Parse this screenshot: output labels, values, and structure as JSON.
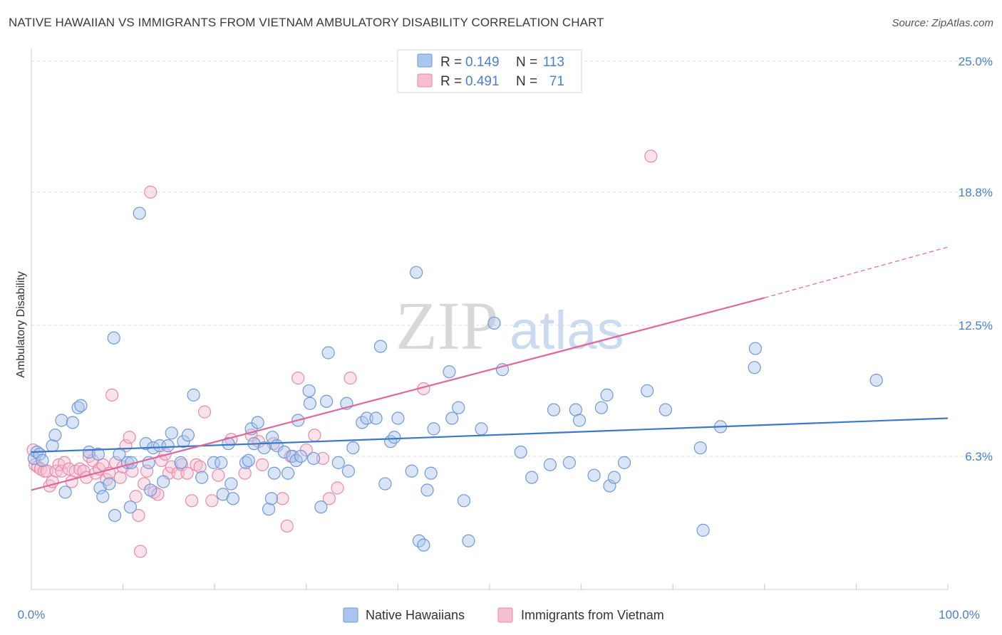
{
  "title": "NATIVE HAWAIIAN VS IMMIGRANTS FROM VIETNAM AMBULATORY DISABILITY CORRELATION CHART",
  "source": "Source: ZipAtlas.com",
  "watermark": {
    "zip": "ZIP",
    "atlas": "atlas"
  },
  "colors": {
    "blue": "#4a7fcf",
    "blue_fill": "#aac6ee",
    "blue_line": "#3b77cc",
    "pink_fill": "#f5bfd0",
    "pink_stroke": "#e98aaa",
    "pink_line": "#e0679a"
  },
  "legend": {
    "r_label": "R =",
    "n_label": "N =",
    "blue": {
      "r": "0.149",
      "n": "113"
    },
    "pink": {
      "r": "0.491",
      "n": "71"
    }
  },
  "chart_data": {
    "type": "scatter",
    "title": "NATIVE HAWAIIAN VS IMMIGRANTS FROM VIETNAM AMBULATORY DISABILITY CORRELATION CHART",
    "xlabel": "",
    "ylabel": "Ambulatory Disability",
    "xlim": [
      0,
      100
    ],
    "ylim": [
      0,
      25.6
    ],
    "x_tick_labels": [
      "0.0%",
      "100.0%"
    ],
    "y_ticks": [
      6.3,
      12.5,
      18.8,
      25.0
    ],
    "y_tick_labels": [
      "6.3%",
      "12.5%",
      "18.8%",
      "25.0%"
    ],
    "grid": true,
    "legend_position": "top-center",
    "series": [
      {
        "name": "Native Hawaiians",
        "r": 0.149,
        "n": 113,
        "trend": {
          "x0": 0,
          "y0": 6.5,
          "x1": 100,
          "y1": 8.1
        },
        "points": [
          [
            0.3,
            6.2
          ],
          [
            0.6,
            6.5
          ],
          [
            0.9,
            6.4
          ],
          [
            1.2,
            6.1
          ],
          [
            2.3,
            6.8
          ],
          [
            2.6,
            7.3
          ],
          [
            3.3,
            8.0
          ],
          [
            3.7,
            4.6
          ],
          [
            4.5,
            7.9
          ],
          [
            5.1,
            8.6
          ],
          [
            5.4,
            8.7
          ],
          [
            6.3,
            6.5
          ],
          [
            7.3,
            6.4
          ],
          [
            7.5,
            4.8
          ],
          [
            7.8,
            4.4
          ],
          [
            8.5,
            5.0
          ],
          [
            9.0,
            11.9
          ],
          [
            9.1,
            3.5
          ],
          [
            9.6,
            6.4
          ],
          [
            10.5,
            6.0
          ],
          [
            10.8,
            3.9
          ],
          [
            10.9,
            6.0
          ],
          [
            12.5,
            6.9
          ],
          [
            12.8,
            6.0
          ],
          [
            13.0,
            4.7
          ],
          [
            13.3,
            6.7
          ],
          [
            14.0,
            6.8
          ],
          [
            14.4,
            5.1
          ],
          [
            14.9,
            6.8
          ],
          [
            15.3,
            7.4
          ],
          [
            16.3,
            6.0
          ],
          [
            16.6,
            7.0
          ],
          [
            17.1,
            7.3
          ],
          [
            17.7,
            9.2
          ],
          [
            18.6,
            5.3
          ],
          [
            19.9,
            6.0
          ],
          [
            20.7,
            6.0
          ],
          [
            20.9,
            4.5
          ],
          [
            21.5,
            6.9
          ],
          [
            21.8,
            5.0
          ],
          [
            22.0,
            4.3
          ],
          [
            23.4,
            6.0
          ],
          [
            23.7,
            6.1
          ],
          [
            24.0,
            7.6
          ],
          [
            24.3,
            6.9
          ],
          [
            24.7,
            7.9
          ],
          [
            25.4,
            6.7
          ],
          [
            25.9,
            3.8
          ],
          [
            26.2,
            4.3
          ],
          [
            26.3,
            7.2
          ],
          [
            26.8,
            6.8
          ],
          [
            26.5,
            5.5
          ],
          [
            27.6,
            6.5
          ],
          [
            28.0,
            5.5
          ],
          [
            28.5,
            6.3
          ],
          [
            28.9,
            6.1
          ],
          [
            29.1,
            8.0
          ],
          [
            29.4,
            6.3
          ],
          [
            30.3,
            9.4
          ],
          [
            30.4,
            8.8
          ],
          [
            30.8,
            6.2
          ],
          [
            31.6,
            3.9
          ],
          [
            32.2,
            8.9
          ],
          [
            32.4,
            11.2
          ],
          [
            33.5,
            6.0
          ],
          [
            34.4,
            8.8
          ],
          [
            34.6,
            5.6
          ],
          [
            35.1,
            6.7
          ],
          [
            36.1,
            7.9
          ],
          [
            36.6,
            8.1
          ],
          [
            37.6,
            8.1
          ],
          [
            38.1,
            11.5
          ],
          [
            38.6,
            5.0
          ],
          [
            39.2,
            7.0
          ],
          [
            39.6,
            7.2
          ],
          [
            40.0,
            8.1
          ],
          [
            41.5,
            5.6
          ],
          [
            42.0,
            15.0
          ],
          [
            42.3,
            2.3
          ],
          [
            42.8,
            2.1
          ],
          [
            43.2,
            4.7
          ],
          [
            43.6,
            5.5
          ],
          [
            43.9,
            7.6
          ],
          [
            45.6,
            10.3
          ],
          [
            45.9,
            8.1
          ],
          [
            46.6,
            8.6
          ],
          [
            47.2,
            4.2
          ],
          [
            47.7,
            2.3
          ],
          [
            49.1,
            7.6
          ],
          [
            50.5,
            12.6
          ],
          [
            51.4,
            10.4
          ],
          [
            53.4,
            6.5
          ],
          [
            54.6,
            5.3
          ],
          [
            57.0,
            8.5
          ],
          [
            56.6,
            5.9
          ],
          [
            58.7,
            6.0
          ],
          [
            59.4,
            8.5
          ],
          [
            59.8,
            8.0
          ],
          [
            61.4,
            5.4
          ],
          [
            62.2,
            8.6
          ],
          [
            62.8,
            9.2
          ],
          [
            63.1,
            4.9
          ],
          [
            63.6,
            5.3
          ],
          [
            64.7,
            6.0
          ],
          [
            67.2,
            9.4
          ],
          [
            69.2,
            8.5
          ],
          [
            73.0,
            6.7
          ],
          [
            73.3,
            2.8
          ],
          [
            75.2,
            7.7
          ],
          [
            78.9,
            10.5
          ],
          [
            79.0,
            11.4
          ],
          [
            92.2,
            9.9
          ],
          [
            11.8,
            17.8
          ]
        ]
      },
      {
        "name": "Immigrants from Vietnam",
        "r": 0.491,
        "n": 71,
        "trend": {
          "x0": 0,
          "y0": 4.7,
          "x1": 80,
          "y1": 13.8,
          "dash_x1": 100,
          "dash_y1": 16.2
        },
        "points": [
          [
            0.2,
            6.6
          ],
          [
            0.4,
            5.9
          ],
          [
            0.7,
            5.8
          ],
          [
            1.0,
            5.7
          ],
          [
            1.4,
            5.6
          ],
          [
            1.7,
            5.6
          ],
          [
            2.0,
            4.9
          ],
          [
            2.3,
            5.1
          ],
          [
            2.7,
            5.6
          ],
          [
            3.0,
            5.9
          ],
          [
            3.3,
            5.6
          ],
          [
            3.6,
            6.0
          ],
          [
            4.1,
            5.7
          ],
          [
            4.4,
            5.1
          ],
          [
            4.8,
            5.6
          ],
          [
            5.3,
            5.7
          ],
          [
            5.7,
            5.6
          ],
          [
            6.0,
            5.3
          ],
          [
            6.3,
            6.3
          ],
          [
            6.7,
            6.1
          ],
          [
            7.0,
            5.5
          ],
          [
            7.4,
            5.7
          ],
          [
            7.8,
            5.9
          ],
          [
            8.2,
            5.2
          ],
          [
            8.5,
            5.5
          ],
          [
            8.8,
            9.2
          ],
          [
            9.2,
            6.0
          ],
          [
            9.7,
            5.3
          ],
          [
            10.0,
            5.8
          ],
          [
            10.3,
            6.8
          ],
          [
            10.7,
            7.2
          ],
          [
            11.0,
            5.6
          ],
          [
            11.4,
            4.4
          ],
          [
            11.7,
            3.5
          ],
          [
            11.9,
            1.8
          ],
          [
            12.3,
            5.0
          ],
          [
            12.6,
            5.6
          ],
          [
            13.0,
            18.8
          ],
          [
            13.4,
            4.6
          ],
          [
            13.8,
            4.5
          ],
          [
            14.2,
            6.1
          ],
          [
            14.6,
            6.4
          ],
          [
            15.0,
            5.5
          ],
          [
            15.3,
            5.8
          ],
          [
            16.0,
            5.5
          ],
          [
            16.4,
            5.9
          ],
          [
            17.0,
            5.5
          ],
          [
            17.5,
            4.2
          ],
          [
            18.0,
            5.9
          ],
          [
            18.4,
            5.8
          ],
          [
            18.9,
            8.4
          ],
          [
            19.7,
            4.2
          ],
          [
            20.4,
            5.4
          ],
          [
            21.8,
            7.1
          ],
          [
            23.3,
            5.5
          ],
          [
            24.0,
            7.3
          ],
          [
            24.8,
            7.0
          ],
          [
            25.2,
            5.9
          ],
          [
            26.4,
            6.9
          ],
          [
            27.4,
            4.3
          ],
          [
            27.9,
            3.0
          ],
          [
            28.3,
            6.3
          ],
          [
            29.1,
            10.0
          ],
          [
            30.0,
            6.6
          ],
          [
            30.9,
            7.3
          ],
          [
            31.8,
            6.2
          ],
          [
            32.5,
            4.3
          ],
          [
            33.4,
            4.8
          ],
          [
            34.8,
            10.0
          ],
          [
            42.8,
            9.5
          ],
          [
            67.6,
            20.5
          ]
        ]
      }
    ]
  },
  "series_labels": {
    "blue": "Native Hawaiians",
    "pink": "Immigrants from Vietnam"
  }
}
